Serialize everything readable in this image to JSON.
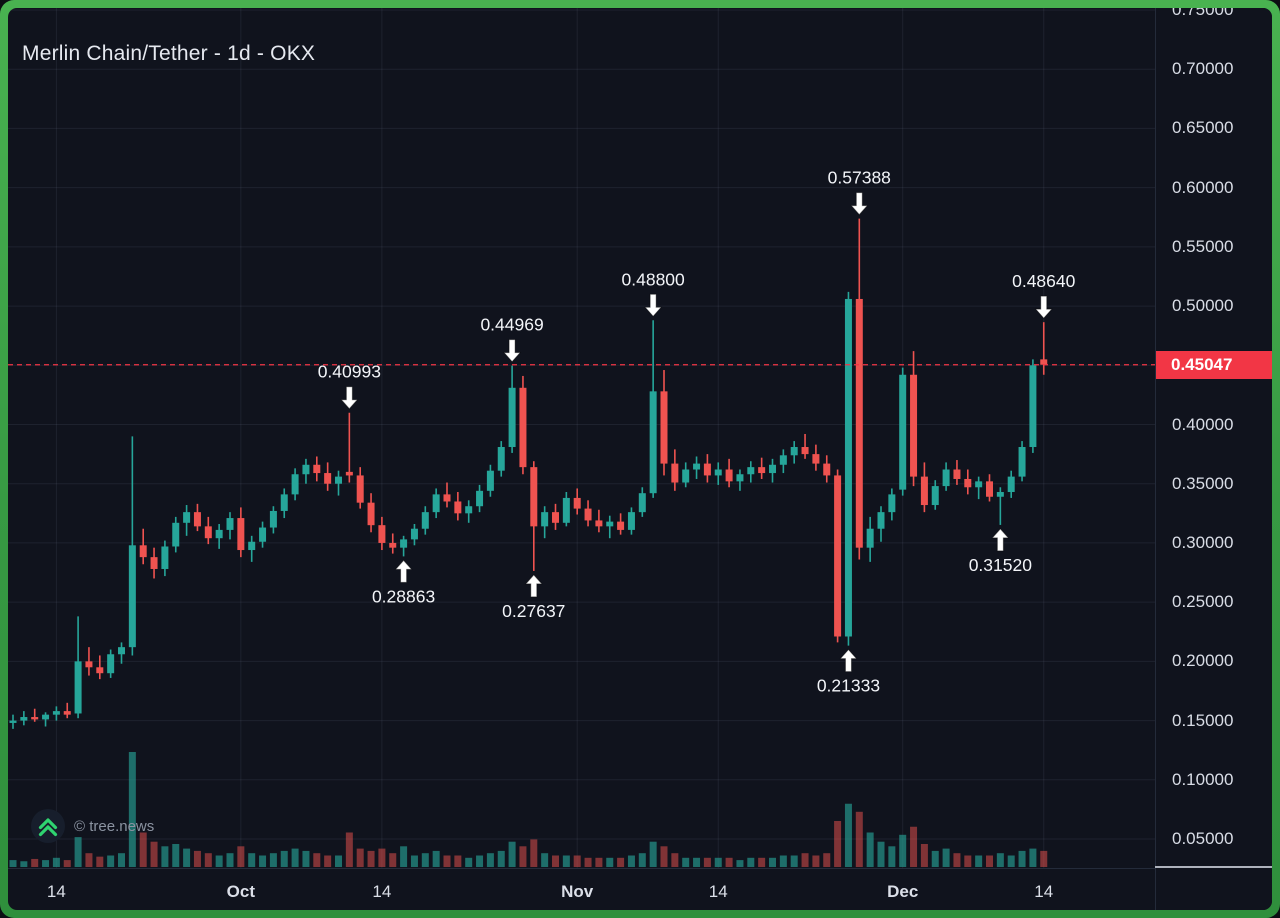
{
  "header": {
    "title": "Merlin Chain/Tether - 1d - OKX"
  },
  "watermark": {
    "text": "© tree.news",
    "icon": "double-chevron-up-icon",
    "icon_color": "#2fd470"
  },
  "colors": {
    "up": "#26a69a",
    "down": "#ef5350",
    "vol_up": "rgba(38,166,154,0.62)",
    "vol_down": "rgba(239,83,80,0.5)",
    "grid": "rgba(155,168,196,0.10)",
    "last_price": "#f23645",
    "badge_bg": "#f23645",
    "frame_green": "#3fa44b",
    "background": "#10131d",
    "axis_text": "#d9dde6",
    "annotation_text": "#f3f5f9"
  },
  "chart_data": {
    "type": "candlestick",
    "title": "Merlin Chain/Tether - 1d - OKX",
    "symbol": "Merlin Chain/Tether",
    "interval": "1d",
    "exchange": "OKX",
    "xlabel": "",
    "ylabel": "",
    "grid": true,
    "ylim": [
      0.03,
      0.76
    ],
    "last_price": "0.45047",
    "last_price_value": 0.45047,
    "price_axis": {
      "labels": [
        "0.75000",
        "0.70000",
        "0.65000",
        "0.60000",
        "0.55000",
        "0.50000",
        "0.45000",
        "0.40000",
        "0.35000",
        "0.30000",
        "0.25000",
        "0.20000",
        "0.15000",
        "0.10000",
        "0.05000"
      ]
    },
    "time_axis": {
      "ticks": [
        {
          "label": "14",
          "candle_index": 4,
          "emphasis": false
        },
        {
          "label": "Oct",
          "candle_index": 21,
          "emphasis": true
        },
        {
          "label": "14",
          "candle_index": 34,
          "emphasis": false
        },
        {
          "label": "Nov",
          "candle_index": 52,
          "emphasis": true
        },
        {
          "label": "14",
          "candle_index": 65,
          "emphasis": false
        },
        {
          "label": "Dec",
          "candle_index": 82,
          "emphasis": true
        },
        {
          "label": "14",
          "candle_index": 95,
          "emphasis": false
        }
      ]
    },
    "annotations": [
      {
        "label": "0.40993",
        "candle_index": 31,
        "position": "above"
      },
      {
        "label": "0.28863",
        "candle_index": 36,
        "position": "below"
      },
      {
        "label": "0.44969",
        "candle_index": 46,
        "position": "above"
      },
      {
        "label": "0.27637",
        "candle_index": 48,
        "position": "below"
      },
      {
        "label": "0.48800",
        "candle_index": 59,
        "position": "above"
      },
      {
        "label": "0.21333",
        "candle_index": 77,
        "position": "below"
      },
      {
        "label": "0.57388",
        "candle_index": 78,
        "position": "above"
      },
      {
        "label": "0.31520",
        "candle_index": 91,
        "position": "below"
      },
      {
        "label": "0.48640",
        "candle_index": 95,
        "position": "above"
      }
    ],
    "candles_format": [
      "open",
      "high",
      "low",
      "close",
      "volume"
    ],
    "candles": [
      [
        0.148,
        0.155,
        0.143,
        0.15,
        6
      ],
      [
        0.15,
        0.158,
        0.146,
        0.153,
        5
      ],
      [
        0.153,
        0.16,
        0.149,
        0.151,
        7
      ],
      [
        0.151,
        0.157,
        0.145,
        0.155,
        6
      ],
      [
        0.155,
        0.162,
        0.15,
        0.158,
        8
      ],
      [
        0.158,
        0.165,
        0.152,
        0.155,
        6
      ],
      [
        0.156,
        0.238,
        0.152,
        0.2,
        26
      ],
      [
        0.2,
        0.212,
        0.188,
        0.195,
        12
      ],
      [
        0.195,
        0.205,
        0.185,
        0.19,
        9
      ],
      [
        0.19,
        0.21,
        0.186,
        0.206,
        10
      ],
      [
        0.206,
        0.216,
        0.198,
        0.212,
        12
      ],
      [
        0.212,
        0.39,
        0.205,
        0.298,
        100
      ],
      [
        0.298,
        0.312,
        0.282,
        0.288,
        30
      ],
      [
        0.288,
        0.296,
        0.27,
        0.278,
        22
      ],
      [
        0.278,
        0.302,
        0.272,
        0.297,
        18
      ],
      [
        0.297,
        0.322,
        0.292,
        0.317,
        20
      ],
      [
        0.317,
        0.332,
        0.306,
        0.326,
        16
      ],
      [
        0.326,
        0.333,
        0.31,
        0.314,
        14
      ],
      [
        0.314,
        0.322,
        0.299,
        0.304,
        12
      ],
      [
        0.304,
        0.316,
        0.295,
        0.311,
        10
      ],
      [
        0.311,
        0.326,
        0.303,
        0.321,
        12
      ],
      [
        0.321,
        0.33,
        0.288,
        0.294,
        18
      ],
      [
        0.294,
        0.306,
        0.284,
        0.301,
        12
      ],
      [
        0.301,
        0.318,
        0.296,
        0.313,
        10
      ],
      [
        0.313,
        0.331,
        0.308,
        0.327,
        12
      ],
      [
        0.327,
        0.346,
        0.321,
        0.341,
        14
      ],
      [
        0.341,
        0.363,
        0.336,
        0.358,
        16
      ],
      [
        0.358,
        0.371,
        0.35,
        0.366,
        14
      ],
      [
        0.366,
        0.373,
        0.352,
        0.359,
        12
      ],
      [
        0.359,
        0.368,
        0.344,
        0.35,
        10
      ],
      [
        0.35,
        0.361,
        0.34,
        0.356,
        10
      ],
      [
        0.36,
        0.40993,
        0.351,
        0.357,
        30
      ],
      [
        0.357,
        0.364,
        0.329,
        0.334,
        16
      ],
      [
        0.334,
        0.342,
        0.309,
        0.315,
        14
      ],
      [
        0.315,
        0.322,
        0.294,
        0.3,
        16
      ],
      [
        0.3,
        0.308,
        0.291,
        0.296,
        12
      ],
      [
        0.296,
        0.306,
        0.28863,
        0.303,
        18
      ],
      [
        0.303,
        0.316,
        0.298,
        0.312,
        10
      ],
      [
        0.312,
        0.331,
        0.307,
        0.326,
        12
      ],
      [
        0.326,
        0.346,
        0.321,
        0.341,
        14
      ],
      [
        0.341,
        0.351,
        0.33,
        0.335,
        10
      ],
      [
        0.335,
        0.343,
        0.319,
        0.325,
        10
      ],
      [
        0.325,
        0.336,
        0.317,
        0.331,
        8
      ],
      [
        0.331,
        0.349,
        0.326,
        0.344,
        10
      ],
      [
        0.344,
        0.366,
        0.339,
        0.361,
        12
      ],
      [
        0.361,
        0.386,
        0.356,
        0.381,
        14
      ],
      [
        0.381,
        0.44969,
        0.376,
        0.431,
        22
      ],
      [
        0.431,
        0.441,
        0.358,
        0.364,
        18
      ],
      [
        0.364,
        0.369,
        0.27637,
        0.314,
        24
      ],
      [
        0.314,
        0.331,
        0.304,
        0.326,
        12
      ],
      [
        0.326,
        0.333,
        0.311,
        0.317,
        10
      ],
      [
        0.317,
        0.343,
        0.314,
        0.338,
        10
      ],
      [
        0.338,
        0.346,
        0.324,
        0.329,
        10
      ],
      [
        0.329,
        0.336,
        0.314,
        0.319,
        8
      ],
      [
        0.319,
        0.328,
        0.309,
        0.314,
        8
      ],
      [
        0.314,
        0.323,
        0.304,
        0.318,
        8
      ],
      [
        0.318,
        0.325,
        0.307,
        0.311,
        8
      ],
      [
        0.311,
        0.33,
        0.307,
        0.326,
        10
      ],
      [
        0.326,
        0.347,
        0.322,
        0.342,
        12
      ],
      [
        0.342,
        0.488,
        0.338,
        0.428,
        22
      ],
      [
        0.428,
        0.446,
        0.357,
        0.367,
        18
      ],
      [
        0.367,
        0.379,
        0.344,
        0.351,
        12
      ],
      [
        0.351,
        0.368,
        0.347,
        0.362,
        8
      ],
      [
        0.362,
        0.373,
        0.354,
        0.367,
        8
      ],
      [
        0.367,
        0.375,
        0.351,
        0.357,
        8
      ],
      [
        0.357,
        0.368,
        0.349,
        0.362,
        8
      ],
      [
        0.362,
        0.371,
        0.347,
        0.352,
        8
      ],
      [
        0.352,
        0.362,
        0.344,
        0.358,
        6
      ],
      [
        0.358,
        0.369,
        0.351,
        0.364,
        8
      ],
      [
        0.364,
        0.372,
        0.354,
        0.359,
        8
      ],
      [
        0.359,
        0.371,
        0.351,
        0.366,
        8
      ],
      [
        0.366,
        0.379,
        0.359,
        0.374,
        10
      ],
      [
        0.374,
        0.386,
        0.367,
        0.381,
        10
      ],
      [
        0.381,
        0.392,
        0.371,
        0.375,
        12
      ],
      [
        0.375,
        0.383,
        0.361,
        0.367,
        10
      ],
      [
        0.367,
        0.374,
        0.351,
        0.357,
        12
      ],
      [
        0.357,
        0.362,
        0.216,
        0.221,
        40
      ],
      [
        0.221,
        0.512,
        0.21333,
        0.506,
        55
      ],
      [
        0.506,
        0.57388,
        0.286,
        0.296,
        48
      ],
      [
        0.296,
        0.322,
        0.284,
        0.312,
        30
      ],
      [
        0.312,
        0.331,
        0.301,
        0.326,
        22
      ],
      [
        0.326,
        0.346,
        0.319,
        0.341,
        18
      ],
      [
        0.345,
        0.448,
        0.34,
        0.442,
        28
      ],
      [
        0.442,
        0.462,
        0.348,
        0.356,
        35
      ],
      [
        0.356,
        0.368,
        0.326,
        0.332,
        20
      ],
      [
        0.332,
        0.353,
        0.328,
        0.348,
        14
      ],
      [
        0.348,
        0.368,
        0.344,
        0.362,
        16
      ],
      [
        0.362,
        0.37,
        0.349,
        0.354,
        12
      ],
      [
        0.354,
        0.362,
        0.341,
        0.347,
        10
      ],
      [
        0.347,
        0.356,
        0.337,
        0.352,
        10
      ],
      [
        0.352,
        0.358,
        0.335,
        0.339,
        10
      ],
      [
        0.339,
        0.347,
        0.3152,
        0.343,
        12
      ],
      [
        0.343,
        0.361,
        0.338,
        0.356,
        10
      ],
      [
        0.356,
        0.386,
        0.352,
        0.381,
        14
      ],
      [
        0.381,
        0.455,
        0.376,
        0.45,
        16
      ],
      [
        0.455,
        0.4864,
        0.442,
        0.45047,
        14
      ]
    ]
  }
}
